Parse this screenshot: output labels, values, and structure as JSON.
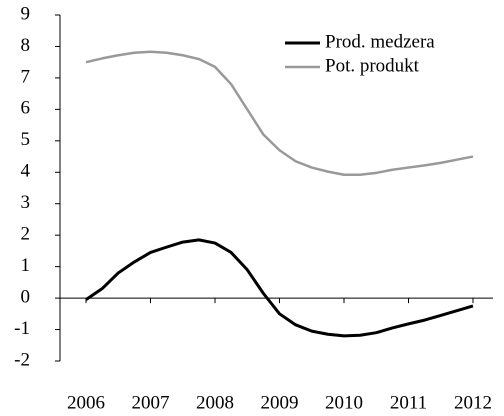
{
  "chart_data": {
    "type": "line",
    "x": [
      2006,
      2006.25,
      2006.5,
      2006.75,
      2007,
      2007.25,
      2007.5,
      2007.75,
      2008,
      2008.25,
      2008.5,
      2008.75,
      2009,
      2009.25,
      2009.5,
      2009.75,
      2010,
      2010.25,
      2010.5,
      2010.75,
      2011,
      2011.25,
      2011.5,
      2011.75,
      2012
    ],
    "series": [
      {
        "name": "Prod. medzera",
        "color": "#000000",
        "values": [
          -0.05,
          0.3,
          0.8,
          1.15,
          1.45,
          1.62,
          1.78,
          1.85,
          1.75,
          1.45,
          0.9,
          0.15,
          -0.5,
          -0.85,
          -1.05,
          -1.15,
          -1.2,
          -1.18,
          -1.1,
          -0.95,
          -0.82,
          -0.7,
          -0.55,
          -0.4,
          -0.25
        ]
      },
      {
        "name": "Pot. produkt",
        "color": "#999999",
        "values": [
          7.5,
          7.62,
          7.72,
          7.8,
          7.83,
          7.8,
          7.72,
          7.6,
          7.35,
          6.8,
          6.0,
          5.2,
          4.7,
          4.35,
          4.15,
          4.02,
          3.92,
          3.92,
          3.98,
          4.08,
          4.15,
          4.22,
          4.3,
          4.4,
          4.5
        ]
      }
    ],
    "xlim": [
      2006,
      2012
    ],
    "xticks": [
      2006,
      2007,
      2008,
      2009,
      2010,
      2011,
      2012
    ],
    "ylim": [
      -2,
      9
    ],
    "yticks": [
      -2,
      -1,
      0,
      1,
      2,
      3,
      4,
      5,
      6,
      7,
      8,
      9
    ],
    "grid": false
  }
}
